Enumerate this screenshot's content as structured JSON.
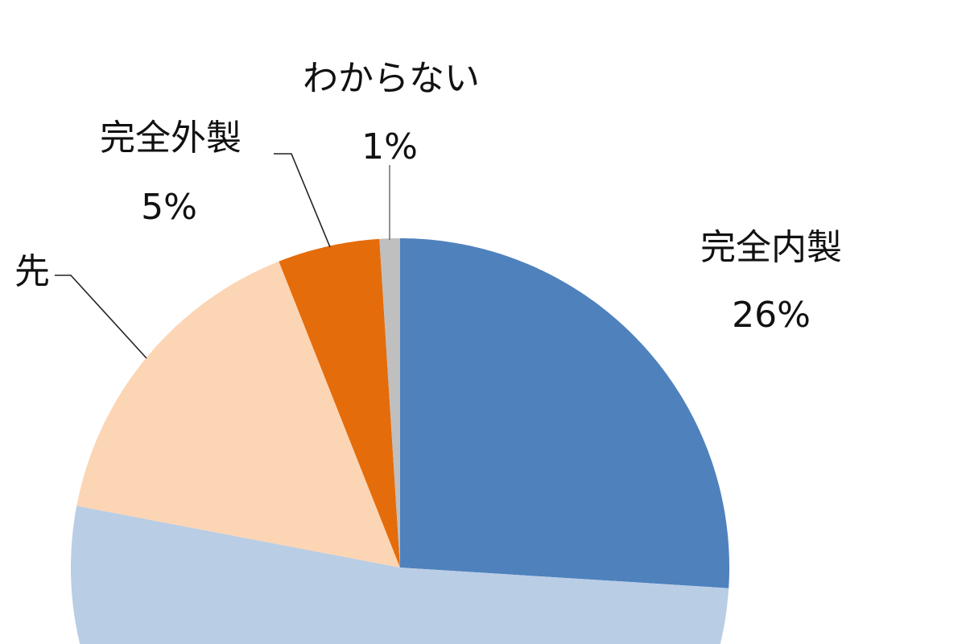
{
  "chart_data": {
    "type": "pie",
    "start": "12 o'clock, clockwise",
    "slices": [
      {
        "label": "完全内製",
        "value_label": "26%",
        "value": 26,
        "color": "#4f81bd"
      },
      {
        "label": "",
        "value_label": "",
        "value": 52,
        "color": "#b9cde5"
      },
      {
        "label": "先",
        "value_label": "",
        "value": 16,
        "color": "#fcd5b5"
      },
      {
        "label": "完全外製",
        "value_label": "5%",
        "value": 5,
        "color": "#e46c0a"
      },
      {
        "label": "わからない",
        "value_label": "1%",
        "value": 1,
        "color": "#bfbfbf"
      }
    ]
  }
}
